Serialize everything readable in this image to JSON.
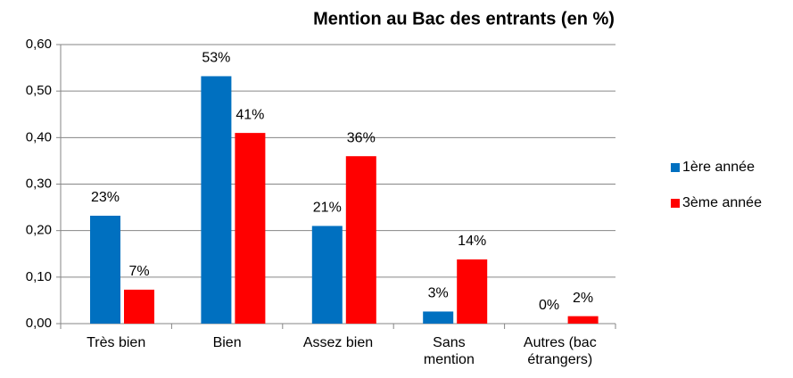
{
  "chart_data": {
    "type": "bar",
    "title": "Mention au Bac des entrants (en %)",
    "categories": [
      "Très bien",
      "Bien",
      "Assez bien",
      "Sans mention",
      "Autres (bac étrangers)"
    ],
    "series": [
      {
        "name": "1ère année",
        "color": "#0070c0",
        "values": [
          0.232,
          0.532,
          0.21,
          0.026,
          0.0
        ],
        "value_labels": [
          "23%",
          "53%",
          "21%",
          "3%",
          "0%"
        ]
      },
      {
        "name": "3ème année",
        "color": "#ff0000",
        "values": [
          0.073,
          0.41,
          0.36,
          0.138,
          0.016
        ],
        "value_labels": [
          "7%",
          "41%",
          "36%",
          "14%",
          "2%"
        ]
      }
    ],
    "ylim": [
      0,
      0.6
    ],
    "yticks": [
      {
        "value": 0,
        "label": "0,00"
      },
      {
        "value": 0.1,
        "label": "0,10"
      },
      {
        "value": 0.2,
        "label": "0,20"
      },
      {
        "value": 0.3,
        "label": "0,30"
      },
      {
        "value": 0.4,
        "label": "0,40"
      },
      {
        "value": 0.5,
        "label": "0,50"
      },
      {
        "value": 0.6,
        "label": "0,60"
      }
    ],
    "grid": true,
    "legend": "right"
  }
}
